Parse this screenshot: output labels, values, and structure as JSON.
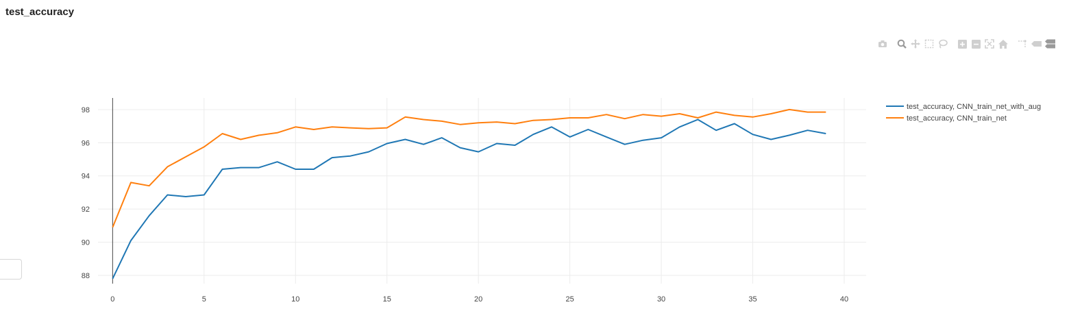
{
  "page": {
    "title": "test_accuracy"
  },
  "modebar": {
    "icons": [
      "camera-icon",
      "zoom-icon",
      "pan-icon",
      "box-select-icon",
      "lasso-icon",
      "zoom-in-icon",
      "zoom-out-icon",
      "autoscale-icon",
      "reset-axes-icon",
      "spike-lines-icon",
      "hover-closest-icon",
      "hover-compare-icon"
    ],
    "icon_color": "#cfcfcf"
  },
  "chart_data": {
    "type": "line",
    "title": "",
    "xlabel": "",
    "ylabel": "",
    "xlim": [
      -0.8,
      41.2
    ],
    "ylim": [
      87.5,
      98.7
    ],
    "x_ticks": [
      0,
      5,
      10,
      15,
      20,
      25,
      30,
      35,
      40
    ],
    "y_ticks": [
      88,
      90,
      92,
      94,
      96,
      98
    ],
    "grid": true,
    "legend_position": "top-right",
    "x": [
      0,
      1,
      2,
      3,
      4,
      5,
      6,
      7,
      8,
      9,
      10,
      11,
      12,
      13,
      14,
      15,
      16,
      17,
      18,
      19,
      20,
      21,
      22,
      23,
      24,
      25,
      26,
      27,
      28,
      29,
      30,
      31,
      32,
      33,
      34,
      35,
      36,
      37,
      38,
      39
    ],
    "series": [
      {
        "name": "test_accuracy, CNN_train_net_with_aug",
        "color": "#1f77b4",
        "values": [
          87.8,
          90.1,
          91.6,
          92.85,
          92.75,
          92.85,
          94.4,
          94.5,
          94.5,
          94.85,
          94.4,
          94.4,
          95.1,
          95.2,
          95.45,
          95.95,
          96.2,
          95.9,
          96.3,
          95.7,
          95.45,
          95.95,
          95.85,
          96.5,
          96.95,
          96.35,
          96.8,
          96.35,
          95.9,
          96.15,
          96.3,
          96.95,
          97.4,
          96.75,
          97.15,
          96.5,
          96.2,
          96.45,
          96.75,
          96.55
        ]
      },
      {
        "name": "test_accuracy, CNN_train_net",
        "color": "#ff7f0e",
        "values": [
          90.9,
          93.6,
          93.4,
          94.55,
          95.15,
          95.75,
          96.55,
          96.2,
          96.45,
          96.6,
          96.95,
          96.8,
          96.95,
          96.9,
          96.85,
          96.9,
          97.55,
          97.4,
          97.3,
          97.1,
          97.2,
          97.25,
          97.15,
          97.35,
          97.4,
          97.5,
          97.5,
          97.7,
          97.45,
          97.7,
          97.6,
          97.75,
          97.5,
          97.85,
          97.65,
          97.55,
          97.75,
          98.0,
          97.85,
          97.85
        ]
      }
    ]
  }
}
